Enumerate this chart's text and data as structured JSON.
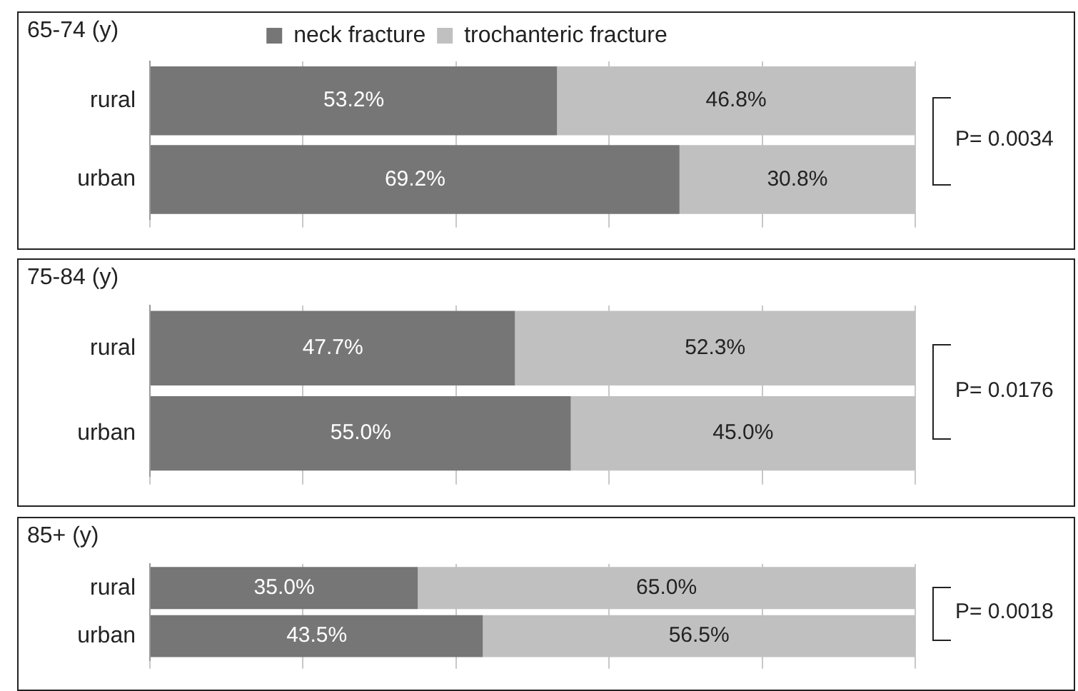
{
  "chart_data": [
    {
      "type": "bar",
      "title": "65-74 (y)",
      "orientation": "horizontal",
      "stacked": true,
      "categories": [
        "rural",
        "urban"
      ],
      "xlim": [
        0,
        100
      ],
      "xticks": [
        {
          "value": 0,
          "label": null
        },
        {
          "value": 20,
          "label": null
        },
        {
          "value": 40,
          "label": null
        },
        {
          "value": 60,
          "label": null
        },
        {
          "value": 80,
          "label": null
        },
        {
          "value": 100,
          "label": null
        }
      ],
      "tick_labels": "y",
      "grid": "x",
      "legend": "top",
      "annotations": [
        "P= 0.0034"
      ],
      "series": [
        {
          "name": "neck fracture",
          "color": "#767676",
          "values": [
            53.2,
            69.2
          ],
          "value_labels": [
            "53.2%",
            "69.2%"
          ]
        },
        {
          "name": "trochanteric fracture",
          "color": "#c0c0c0",
          "values": [
            46.8,
            30.8
          ],
          "value_labels": [
            "46.8%",
            "30.8%"
          ]
        }
      ]
    },
    {
      "type": "bar",
      "title": "75-84 (y)",
      "orientation": "horizontal",
      "stacked": true,
      "categories": [
        "rural",
        "urban"
      ],
      "xlim": [
        0,
        100
      ],
      "xticks": [
        {
          "value": 0,
          "label": null
        },
        {
          "value": 20,
          "label": null
        },
        {
          "value": 40,
          "label": null
        },
        {
          "value": 60,
          "label": null
        },
        {
          "value": 80,
          "label": null
        },
        {
          "value": 100,
          "label": null
        }
      ],
      "tick_labels": "y",
      "grid": "x",
      "annotations": [
        "P= 0.0176"
      ],
      "series": [
        {
          "color": "#767676",
          "values": [
            47.7,
            55.0
          ],
          "value_labels": [
            "47.7%",
            "55.0%"
          ]
        },
        {
          "color": "#c0c0c0",
          "values": [
            52.3,
            45.0
          ],
          "value_labels": [
            "52.3%",
            "45.0%"
          ]
        }
      ]
    },
    {
      "type": "bar",
      "title": "85+ (y)",
      "orientation": "horizontal",
      "stacked": true,
      "categories": [
        "rural",
        "urban"
      ],
      "xlim": [
        0,
        100
      ],
      "xticks": [
        {
          "value": 0,
          "label": null
        },
        {
          "value": 20,
          "label": null
        },
        {
          "value": 40,
          "label": null
        },
        {
          "value": 60,
          "label": null
        },
        {
          "value": 80,
          "label": null
        },
        {
          "value": 100,
          "label": null
        }
      ],
      "tick_labels": "y",
      "grid": "x",
      "annotations": [
        "P= 0.0018"
      ],
      "series": [
        {
          "color": "#767676",
          "values": [
            35.0,
            43.5
          ],
          "value_labels": [
            "35.0%",
            "43.5%"
          ]
        },
        {
          "color": "#c0c0c0",
          "values": [
            65.0,
            56.5
          ],
          "value_labels": [
            "65.0%",
            "56.5%"
          ]
        }
      ]
    }
  ]
}
